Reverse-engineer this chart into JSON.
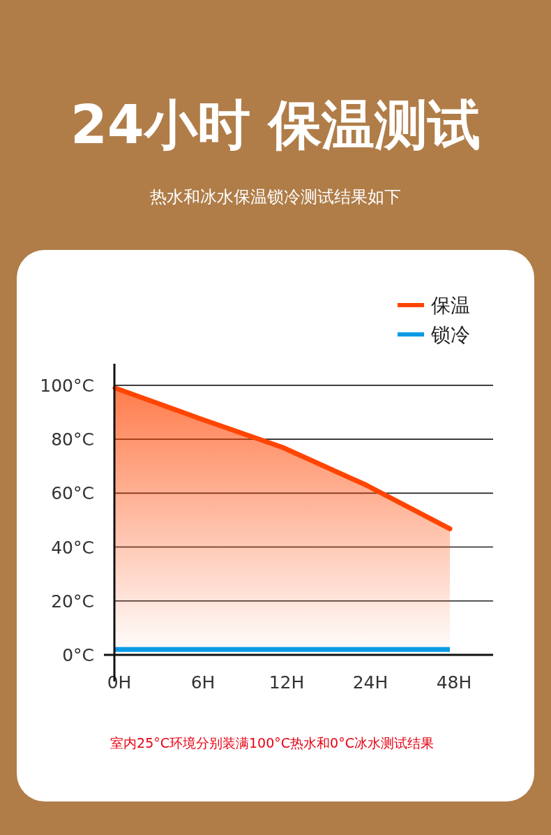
{
  "chart_data": {
    "type": "line",
    "title": "24小时 保温测试",
    "subtitle": "热水和冰水保温锁冷测试结果如下",
    "annotations": [
      "室内25°C环境分别装满100°C热水和0°C冰水测试结果"
    ],
    "categories": [
      "0H",
      "6H",
      "12H",
      "24H",
      "48H"
    ],
    "ylim": [
      0,
      108
    ],
    "yticks": [
      {
        "value": 0,
        "label": "0°C"
      },
      {
        "value": 20,
        "label": "20°C"
      },
      {
        "value": 40,
        "label": "40°C"
      },
      {
        "value": 60,
        "label": "60°C"
      },
      {
        "value": 80,
        "label": "80°C"
      },
      {
        "value": 100,
        "label": "100°C"
      }
    ],
    "grid": "y",
    "legend": "top right",
    "series": [
      {
        "name": "保温",
        "type": "area",
        "color": "#ff4500",
        "values": [
          99,
          87.8,
          77,
          63,
          46.8
        ]
      },
      {
        "name": "锁冷",
        "type": "line",
        "color": "#0a9be6",
        "values": [
          2,
          2,
          2,
          2,
          2
        ]
      }
    ]
  }
}
